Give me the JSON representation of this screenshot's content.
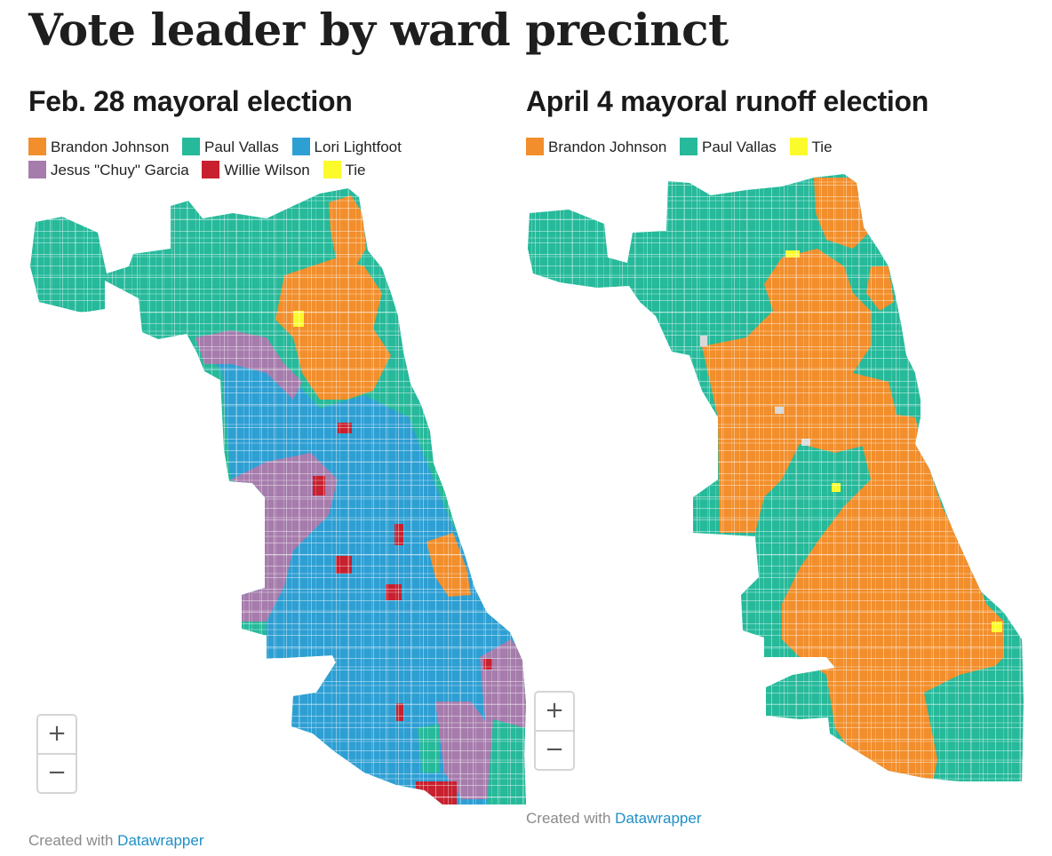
{
  "title": "Vote leader by ward precinct",
  "colors": {
    "johnson": "#f28e2b",
    "vallas": "#26b99a",
    "lightfoot": "#2e9fd3",
    "garcia": "#a67cac",
    "wilson": "#c8202e",
    "tie": "#fbfa2a",
    "nodata": "#d9d9d9",
    "border": "#ffffff"
  },
  "maps": [
    {
      "subtitle": "Feb. 28 mayoral election",
      "legend": [
        {
          "label": "Brandon Johnson",
          "color": "#f28e2b"
        },
        {
          "label": "Paul Vallas",
          "color": "#26b99a"
        },
        {
          "label": "Lori Lightfoot",
          "color": "#2e9fd3"
        },
        {
          "label": "Jesus \"Chuy\" Garcia",
          "color": "#a67cac"
        },
        {
          "label": "Willie Wilson",
          "color": "#c8202e"
        },
        {
          "label": "Tie",
          "color": "#fbfa2a"
        }
      ],
      "zoom": {
        "plus": "+",
        "minus": "−"
      },
      "credit": {
        "prefix": "Created with ",
        "link": "Datawrapper"
      }
    },
    {
      "subtitle": "April 4 mayoral runoff election",
      "legend": [
        {
          "label": "Brandon Johnson",
          "color": "#f28e2b"
        },
        {
          "label": "Paul Vallas",
          "color": "#26b99a"
        },
        {
          "label": "Tie",
          "color": "#fbfa2a"
        }
      ],
      "zoom": {
        "plus": "+",
        "minus": "−"
      },
      "credit": {
        "prefix": "Created with ",
        "link": "Datawrapper"
      }
    }
  ]
}
